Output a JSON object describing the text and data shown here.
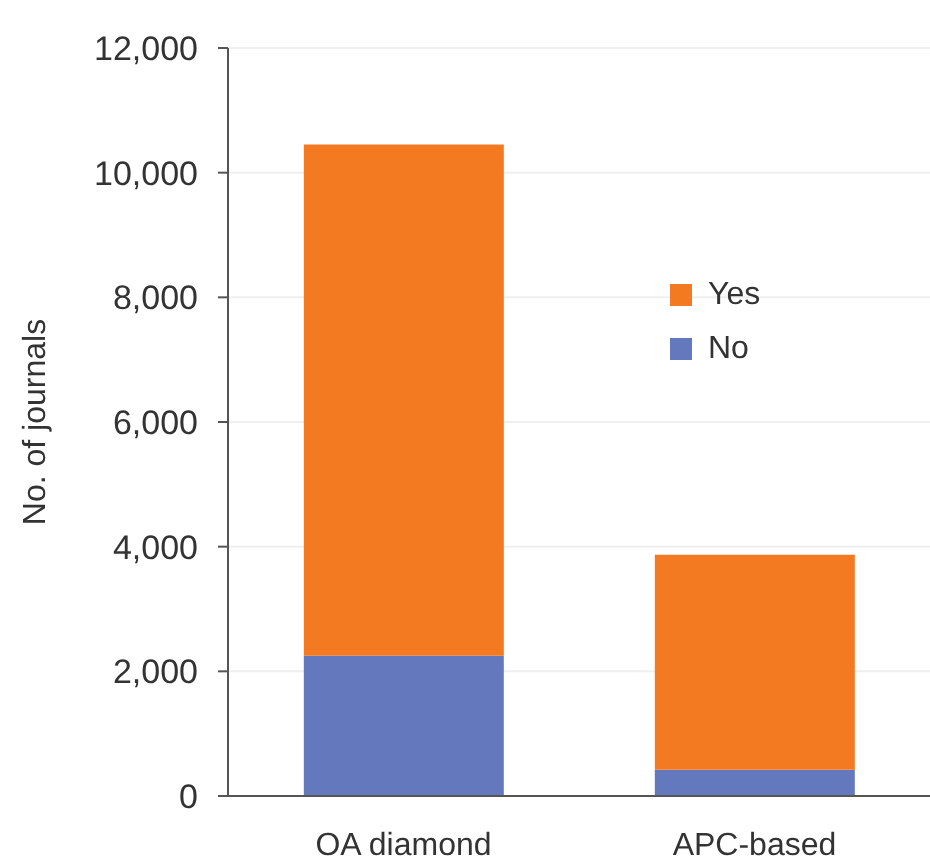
{
  "chart_data": {
    "type": "bar",
    "ylabel": "No. of journals",
    "categories": [
      "OA diamond",
      "APC-based"
    ],
    "series": [
      {
        "name": "No",
        "color": "#6479bd",
        "values": [
          2250,
          420
        ]
      },
      {
        "name": "Yes",
        "color": "#f47a22",
        "values": [
          8200,
          3450
        ]
      }
    ],
    "stacked": true,
    "ylim": [
      0,
      12000
    ],
    "yticks": [
      {
        "value": 0,
        "label": "0"
      },
      {
        "value": 2000,
        "label": "2,000"
      },
      {
        "value": 4000,
        "label": "4,000"
      },
      {
        "value": 6000,
        "label": "6,000"
      },
      {
        "value": 8000,
        "label": "8,000"
      },
      {
        "value": 10000,
        "label": "10,000"
      },
      {
        "value": 12000,
        "label": "12,000"
      }
    ],
    "grid": "y",
    "legend": "right"
  }
}
